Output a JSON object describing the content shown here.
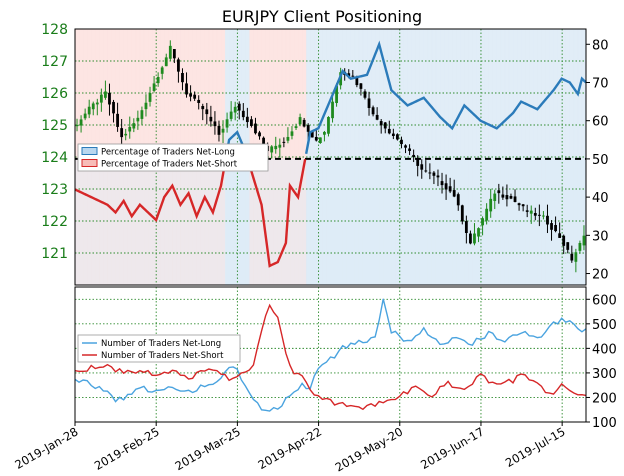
{
  "chart_data": {
    "title": "EURJPY Client Positioning",
    "colors": {
      "pct_long": "#2b7bba",
      "pct_short": "#d62728",
      "num_long": "#4aa3df",
      "num_short": "#d62728",
      "price_up": "#1f8a1f",
      "price_down": "#000000",
      "long_zone": "#dceaf6",
      "short_zone": "#fde0de",
      "axis_text_left": "#1a7d1a",
      "grid": "#2e8b2e"
    },
    "x_ticks": [
      "2019-Jan-28",
      "2019-Feb-25",
      "2019-Mar-25",
      "2019-Apr-22",
      "2019-May-20",
      "2019-Jun-17",
      "2019-Jul-15"
    ],
    "x_days": 126,
    "top": {
      "left_axis": {
        "ticks": [
          121,
          122,
          123,
          124,
          125,
          126,
          127,
          128
        ],
        "ylim": [
          120,
          128
        ]
      },
      "right_axis": {
        "ticks": [
          20,
          30,
          40,
          50,
          60,
          70,
          80
        ],
        "ylim": [
          17,
          84
        ]
      },
      "reference_line": 50,
      "legend": {
        "position": "left",
        "entries": [
          "Percentage of Traders Net-Long",
          "Percentage of Traders Net-Short"
        ]
      },
      "price_points": [
        [
          0,
          124.9
        ],
        [
          4,
          125.5
        ],
        [
          8,
          126.0
        ],
        [
          12,
          124.6
        ],
        [
          16,
          125.2
        ],
        [
          20,
          126.3
        ],
        [
          24,
          127.4
        ],
        [
          28,
          126.0
        ],
        [
          32,
          125.5
        ],
        [
          36,
          124.7
        ],
        [
          40,
          125.6
        ],
        [
          44,
          125.0
        ],
        [
          48,
          124.2
        ],
        [
          52,
          124.5
        ],
        [
          56,
          125.2
        ],
        [
          60,
          124.5
        ],
        [
          62,
          124.8
        ],
        [
          66,
          126.7
        ],
        [
          69,
          126.5
        ],
        [
          72,
          125.9
        ],
        [
          74,
          125.3
        ],
        [
          78,
          124.8
        ],
        [
          82,
          124.3
        ],
        [
          86,
          123.6
        ],
        [
          90,
          123.3
        ],
        [
          94,
          122.8
        ],
        [
          98,
          121.3
        ],
        [
          100,
          121.8
        ],
        [
          104,
          122.9
        ],
        [
          108,
          122.7
        ],
        [
          112,
          122.3
        ],
        [
          116,
          122.1
        ],
        [
          120,
          121.5
        ],
        [
          123,
          120.8
        ],
        [
          126,
          121.5
        ]
      ],
      "percent_points": [
        [
          0,
          42
        ],
        [
          4,
          40
        ],
        [
          8,
          38
        ],
        [
          10,
          36
        ],
        [
          12,
          39
        ],
        [
          14,
          35
        ],
        [
          16,
          38
        ],
        [
          20,
          34
        ],
        [
          22,
          40
        ],
        [
          24,
          43
        ],
        [
          26,
          38
        ],
        [
          28,
          41
        ],
        [
          30,
          35
        ],
        [
          32,
          40
        ],
        [
          34,
          36
        ],
        [
          36,
          43
        ],
        [
          38,
          55
        ],
        [
          40,
          57
        ],
        [
          42,
          52
        ],
        [
          44,
          45
        ],
        [
          46,
          38
        ],
        [
          48,
          22
        ],
        [
          50,
          23
        ],
        [
          52,
          28
        ],
        [
          53,
          43
        ],
        [
          55,
          40
        ],
        [
          58,
          57
        ],
        [
          60,
          58
        ],
        [
          66,
          73
        ],
        [
          68,
          71
        ],
        [
          72,
          72
        ],
        [
          75,
          80
        ],
        [
          78,
          68
        ],
        [
          82,
          64
        ],
        [
          86,
          66
        ],
        [
          90,
          61
        ],
        [
          93,
          58
        ],
        [
          96,
          64
        ],
        [
          100,
          60
        ],
        [
          104,
          58
        ],
        [
          108,
          62
        ],
        [
          110,
          65
        ],
        [
          114,
          63
        ],
        [
          118,
          68
        ],
        [
          120,
          71
        ],
        [
          122,
          70
        ],
        [
          124,
          67
        ],
        [
          125,
          71
        ],
        [
          126,
          70
        ]
      ]
    },
    "bottom": {
      "right_axis": {
        "ticks": [
          100,
          200,
          300,
          400,
          500,
          600
        ],
        "ylim": [
          100,
          650
        ]
      },
      "legend": {
        "position": "left",
        "entries": [
          "Number of Traders Net-Long",
          "Number of Traders Net-Short"
        ]
      },
      "net_long": [
        [
          0,
          280
        ],
        [
          4,
          250
        ],
        [
          8,
          230
        ],
        [
          10,
          190
        ],
        [
          14,
          210
        ],
        [
          16,
          240
        ],
        [
          20,
          220
        ],
        [
          24,
          250
        ],
        [
          28,
          220
        ],
        [
          32,
          250
        ],
        [
          36,
          270
        ],
        [
          38,
          330
        ],
        [
          40,
          310
        ],
        [
          42,
          250
        ],
        [
          44,
          200
        ],
        [
          46,
          150
        ],
        [
          48,
          140
        ],
        [
          50,
          160
        ],
        [
          52,
          190
        ],
        [
          54,
          230
        ],
        [
          56,
          250
        ],
        [
          58,
          240
        ],
        [
          60,
          320
        ],
        [
          64,
          370
        ],
        [
          66,
          400
        ],
        [
          70,
          430
        ],
        [
          74,
          440
        ],
        [
          76,
          600
        ],
        [
          78,
          470
        ],
        [
          82,
          430
        ],
        [
          86,
          480
        ],
        [
          90,
          410
        ],
        [
          94,
          450
        ],
        [
          98,
          420
        ],
        [
          102,
          460
        ],
        [
          106,
          430
        ],
        [
          110,
          470
        ],
        [
          114,
          440
        ],
        [
          118,
          500
        ],
        [
          120,
          520
        ],
        [
          122,
          510
        ],
        [
          124,
          470
        ],
        [
          126,
          480
        ]
      ],
      "net_short": [
        [
          0,
          310
        ],
        [
          4,
          320
        ],
        [
          8,
          330
        ],
        [
          12,
          300
        ],
        [
          16,
          310
        ],
        [
          20,
          290
        ],
        [
          24,
          310
        ],
        [
          28,
          280
        ],
        [
          32,
          310
        ],
        [
          36,
          300
        ],
        [
          38,
          270
        ],
        [
          40,
          280
        ],
        [
          42,
          300
        ],
        [
          44,
          330
        ],
        [
          46,
          480
        ],
        [
          48,
          580
        ],
        [
          50,
          520
        ],
        [
          52,
          380
        ],
        [
          54,
          300
        ],
        [
          56,
          280
        ],
        [
          58,
          230
        ],
        [
          60,
          200
        ],
        [
          64,
          180
        ],
        [
          68,
          170
        ],
        [
          72,
          160
        ],
        [
          76,
          180
        ],
        [
          80,
          200
        ],
        [
          84,
          250
        ],
        [
          88,
          210
        ],
        [
          92,
          260
        ],
        [
          96,
          230
        ],
        [
          100,
          290
        ],
        [
          104,
          250
        ],
        [
          108,
          270
        ],
        [
          110,
          300
        ],
        [
          114,
          250
        ],
        [
          116,
          230
        ],
        [
          118,
          220
        ],
        [
          120,
          260
        ],
        [
          122,
          230
        ],
        [
          124,
          200
        ],
        [
          126,
          210
        ]
      ]
    }
  }
}
